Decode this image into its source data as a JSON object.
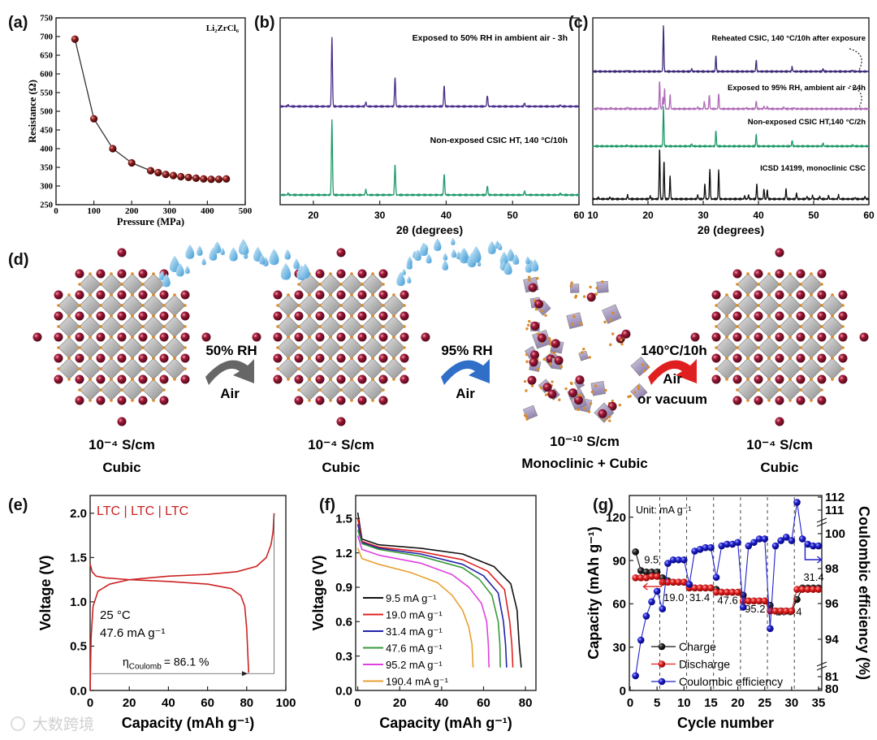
{
  "figure_labels": [
    "(a)",
    "(b)",
    "(c)",
    "(d)",
    "(e)",
    "(f)",
    "(g)"
  ],
  "watermark": "大数跨境",
  "chart_data": [
    {
      "panel": "a",
      "type": "scatter",
      "annotation": "Li₂ZrCl₆",
      "xlabel": "Pressure (MPa)",
      "ylabel": "Resistance (Ω)",
      "xlim": [
        0,
        500
      ],
      "ylim": [
        250,
        750
      ],
      "xticks": [
        0,
        100,
        200,
        300,
        400,
        500
      ],
      "yticks": [
        250,
        300,
        350,
        400,
        450,
        500,
        550,
        600,
        650,
        700,
        750
      ],
      "x": [
        50,
        100,
        150,
        200,
        250,
        270,
        290,
        310,
        330,
        350,
        370,
        390,
        410,
        430,
        450
      ],
      "y": [
        693,
        480,
        400,
        362,
        341,
        336,
        331,
        328,
        325,
        323,
        321,
        319,
        318,
        318,
        319
      ],
      "color": "#8b1a1a"
    },
    {
      "panel": "b",
      "type": "line",
      "xlabel": "2θ (degrees)",
      "xlim": [
        15,
        60
      ],
      "xticks": [
        20,
        30,
        40,
        50,
        60
      ],
      "series": [
        {
          "name": "Exposed to 50% RH in ambient air - 3h",
          "color": "#4a2d8c",
          "peaks": [
            [
              16.2,
              0.02
            ],
            [
              22.8,
              1.0
            ],
            [
              27.9,
              0.06
            ],
            [
              32.3,
              0.42
            ],
            [
              39.7,
              0.3
            ],
            [
              46.2,
              0.16
            ],
            [
              51.8,
              0.05
            ],
            [
              57.2,
              0.02
            ]
          ]
        },
        {
          "name": "Non-exposed CSIC HT, 140 °C/10h",
          "color": "#1f9a6a",
          "peaks": [
            [
              16.2,
              0.02
            ],
            [
              22.8,
              1.0
            ],
            [
              27.9,
              0.07
            ],
            [
              32.3,
              0.4
            ],
            [
              39.7,
              0.28
            ],
            [
              46.2,
              0.12
            ],
            [
              51.8,
              0.05
            ],
            [
              57.2,
              0.02
            ]
          ]
        }
      ]
    },
    {
      "panel": "c",
      "type": "line",
      "xlabel": "2θ (degrees)",
      "xlim": [
        10,
        60
      ],
      "xticks": [
        10,
        20,
        30,
        40,
        50,
        60
      ],
      "series": [
        {
          "name": "Reheated CSIC, 140 °C/10h after exposure",
          "color": "#3e2a78",
          "peaks": [
            [
              16.2,
              0.02
            ],
            [
              22.8,
              1.0
            ],
            [
              27.9,
              0.06
            ],
            [
              32.3,
              0.35
            ],
            [
              39.6,
              0.25
            ],
            [
              46.1,
              0.1
            ],
            [
              51.7,
              0.06
            ],
            [
              57,
              0.03
            ]
          ]
        },
        {
          "name": "Exposed to 95% RH, ambient air - 24h",
          "color": "#b06cb8",
          "peaks": [
            [
              11,
              0.04
            ],
            [
              13.3,
              0.03
            ],
            [
              16.3,
              0.06
            ],
            [
              20.5,
              0.04
            ],
            [
              22.1,
              1.0
            ],
            [
              22.7,
              0.4
            ],
            [
              23,
              0.7
            ],
            [
              24,
              0.5
            ],
            [
              29,
              0.06
            ],
            [
              30.2,
              0.25
            ],
            [
              31.1,
              0.5
            ],
            [
              32.8,
              0.55
            ],
            [
              37.8,
              0.04
            ],
            [
              39.6,
              0.28
            ],
            [
              41,
              0.08
            ],
            [
              41.6,
              0.07
            ],
            [
              44.6,
              0.06
            ],
            [
              46.5,
              0.04
            ]
          ]
        },
        {
          "name": "Non-exposed CSIC HT,140 °C/2h",
          "color": "#1f9a6a",
          "peaks": [
            [
              16.2,
              0.02
            ],
            [
              22.8,
              1.0
            ],
            [
              27.9,
              0.06
            ],
            [
              32.3,
              0.4
            ],
            [
              39.6,
              0.3
            ],
            [
              46.1,
              0.15
            ],
            [
              51.7,
              0.08
            ],
            [
              57.1,
              0.03
            ]
          ]
        },
        {
          "name": "ICSD 14199, monoclinic CSC",
          "color": "#111111",
          "peaks": [
            [
              11,
              0.03
            ],
            [
              13.1,
              0.04
            ],
            [
              16.3,
              0.08
            ],
            [
              20.4,
              0.06
            ],
            [
              22.1,
              1.0
            ],
            [
              22.9,
              0.75
            ],
            [
              24,
              0.45
            ],
            [
              29,
              0.08
            ],
            [
              30.3,
              0.3
            ],
            [
              31.2,
              0.6
            ],
            [
              32.8,
              0.57
            ],
            [
              37.5,
              0.06
            ],
            [
              38.2,
              0.08
            ],
            [
              39.7,
              0.3
            ],
            [
              41,
              0.2
            ],
            [
              41.6,
              0.18
            ],
            [
              45,
              0.2
            ],
            [
              46.9,
              0.12
            ],
            [
              48.8,
              0.05
            ],
            [
              49.8,
              0.07
            ],
            [
              51.1,
              0.05
            ],
            [
              52.7,
              0.07
            ],
            [
              54.5,
              0.08
            ],
            [
              57.5,
              0.03
            ],
            [
              59.3,
              0.05
            ]
          ]
        }
      ]
    },
    {
      "panel": "e",
      "type": "line",
      "title": "LTC | LTC | LTC",
      "conditions": [
        "25 °C",
        "47.6 mA g⁻¹"
      ],
      "eta_symbol": "η",
      "eta_sub": "Coulomb",
      "eta_value": "= 86.1 %",
      "xlabel": "Capacity (mAh g⁻¹)",
      "ylabel": "Voltage (V)",
      "xlim": [
        0,
        100
      ],
      "ylim": [
        0,
        2.2
      ],
      "xticks": [
        0,
        20,
        40,
        60,
        80,
        100
      ],
      "yticks": [
        0.0,
        0.5,
        1.0,
        1.5,
        2.0
      ],
      "ytick_labels": [
        "0.0",
        "0.5",
        "1.0",
        "1.5",
        "2.0"
      ],
      "color": "#cc2222",
      "series": [
        {
          "name": "charge",
          "points": [
            [
              0,
              0
            ],
            [
              0.5,
              0.6
            ],
            [
              1.5,
              0.95
            ],
            [
              4,
              1.12
            ],
            [
              10,
              1.2
            ],
            [
              20,
              1.25
            ],
            [
              40,
              1.29
            ],
            [
              60,
              1.31
            ],
            [
              75,
              1.34
            ],
            [
              85,
              1.4
            ],
            [
              90,
              1.5
            ],
            [
              92.5,
              1.65
            ],
            [
              93.5,
              1.8
            ],
            [
              94,
              2.0
            ]
          ]
        },
        {
          "name": "discharge",
          "points": [
            [
              0,
              1.43
            ],
            [
              1,
              1.34
            ],
            [
              3,
              1.29
            ],
            [
              8,
              1.27
            ],
            [
              20,
              1.25
            ],
            [
              40,
              1.23
            ],
            [
              60,
              1.2
            ],
            [
              72,
              1.15
            ],
            [
              77,
              1.07
            ],
            [
              79,
              0.95
            ],
            [
              80,
              0.7
            ],
            [
              80.6,
              0.4
            ],
            [
              81,
              0.2
            ]
          ]
        }
      ]
    },
    {
      "panel": "f",
      "type": "line",
      "xlabel": "Capacity (mAh g⁻¹)",
      "ylabel": "Voltage (V)",
      "xlim": [
        -1,
        85
      ],
      "ylim": [
        0,
        1.7
      ],
      "xticks": [
        0,
        20,
        40,
        60,
        80
      ],
      "yticks": [
        0,
        0.3,
        0.6,
        0.9,
        1.2,
        1.5
      ],
      "ytick_labels": [
        "0.0",
        "0.3",
        "0.6",
        "0.9",
        "1.2",
        "1.5"
      ],
      "series": [
        {
          "name": "9.5 mA g⁻¹",
          "color": "#111111",
          "points": [
            [
              0,
              1.55
            ],
            [
              2,
              1.32
            ],
            [
              10,
              1.27
            ],
            [
              30,
              1.24
            ],
            [
              50,
              1.19
            ],
            [
              65,
              1.08
            ],
            [
              73,
              0.93
            ],
            [
              76,
              0.7
            ],
            [
              77,
              0.4
            ],
            [
              78,
              0.2
            ]
          ]
        },
        {
          "name": "19.0 mA g⁻¹",
          "color": "#e02020",
          "points": [
            [
              0,
              1.5
            ],
            [
              2,
              1.3
            ],
            [
              10,
              1.25
            ],
            [
              30,
              1.21
            ],
            [
              50,
              1.14
            ],
            [
              62,
              1.04
            ],
            [
              70,
              0.88
            ],
            [
              72.5,
              0.6
            ],
            [
              73.5,
              0.4
            ],
            [
              74,
              0.2
            ]
          ]
        },
        {
          "name": "31.4 mA g⁻¹",
          "color": "#2222aa",
          "points": [
            [
              0,
              1.45
            ],
            [
              2,
              1.29
            ],
            [
              10,
              1.24
            ],
            [
              30,
              1.19
            ],
            [
              50,
              1.1
            ],
            [
              60,
              1.0
            ],
            [
              67,
              0.85
            ],
            [
              69.5,
              0.6
            ],
            [
              70.5,
              0.4
            ],
            [
              71,
              0.2
            ]
          ]
        },
        {
          "name": "47.6 mA g⁻¹",
          "color": "#3a9a3a",
          "points": [
            [
              0,
              1.4
            ],
            [
              2,
              1.28
            ],
            [
              10,
              1.23
            ],
            [
              30,
              1.17
            ],
            [
              50,
              1.07
            ],
            [
              58,
              0.97
            ],
            [
              64,
              0.83
            ],
            [
              67,
              0.6
            ],
            [
              67.8,
              0.4
            ],
            [
              68,
              0.2
            ]
          ]
        },
        {
          "name": "95.2 mA g⁻¹",
          "color": "#e040e0",
          "points": [
            [
              0,
              1.35
            ],
            [
              2,
              1.23
            ],
            [
              10,
              1.18
            ],
            [
              30,
              1.11
            ],
            [
              45,
              1.01
            ],
            [
              53,
              0.9
            ],
            [
              59,
              0.76
            ],
            [
              61.5,
              0.6
            ],
            [
              62.3,
              0.4
            ],
            [
              62.6,
              0.2
            ]
          ]
        },
        {
          "name": "190.4 mA g⁻¹",
          "color": "#e8a030",
          "points": [
            [
              0,
              1.24
            ],
            [
              2,
              1.15
            ],
            [
              10,
              1.1
            ],
            [
              25,
              1.03
            ],
            [
              38,
              0.94
            ],
            [
              45,
              0.83
            ],
            [
              50,
              0.7
            ],
            [
              53,
              0.55
            ],
            [
              54.5,
              0.4
            ],
            [
              55,
              0.2
            ]
          ]
        }
      ]
    },
    {
      "panel": "g",
      "type": "scatter",
      "unit_note": "Unit: mA g⁻¹",
      "xlabel": "Cycle number",
      "ylabel": "Capacity (mAh g⁻¹)",
      "y2label": "Coulombic efficiency (%)",
      "xlim": [
        -0.15,
        35.6
      ],
      "ylim": [
        0,
        135
      ],
      "xticks": [
        0,
        5,
        10,
        15,
        20,
        25,
        30,
        35
      ],
      "yticks": [
        0,
        30,
        60,
        90,
        120
      ],
      "y2ticks": [
        80,
        81,
        94,
        96,
        98,
        100,
        111,
        112
      ],
      "rate_boundaries": [
        5.5,
        10.5,
        15.5,
        20.5,
        25.5,
        30.5
      ],
      "rate_labels": [
        "9.5",
        "19.0",
        "31.4",
        "47.6",
        "95.2",
        "190.4",
        "31.4"
      ],
      "cycles": [
        1,
        2,
        3,
        4,
        5,
        6,
        7,
        8,
        9,
        10,
        11,
        12,
        13,
        14,
        15,
        16,
        17,
        18,
        19,
        20,
        21,
        22,
        23,
        24,
        25,
        26,
        27,
        28,
        29,
        30,
        31,
        32,
        33,
        34,
        35
      ],
      "series": [
        {
          "name": "Charge",
          "color": "#111111",
          "axis": "left",
          "values": [
            96,
            83,
            82,
            82,
            82,
            78,
            76,
            75,
            75,
            75,
            72,
            71,
            71,
            71,
            71,
            70,
            68,
            68,
            68,
            68,
            66,
            62,
            62,
            62,
            62,
            59,
            55,
            55,
            55,
            55,
            63,
            71,
            71,
            71,
            71
          ]
        },
        {
          "name": "Discharge",
          "color": "#e02020",
          "axis": "left",
          "values": [
            78,
            78,
            78,
            79,
            79,
            75,
            75,
            75,
            75,
            75,
            71,
            71,
            71,
            71,
            71,
            68,
            68,
            68,
            68,
            68,
            62,
            62,
            62,
            62,
            62,
            55,
            55,
            55,
            55,
            55,
            70,
            70,
            70,
            70,
            70
          ]
        },
        {
          "name": "Coulombic efficiency",
          "color": "#2020cc",
          "axis": "right",
          "values": [
            81.3,
            93.7,
            95.3,
            96.1,
            96.7,
            95.7,
            98.3,
            98.5,
            98.5,
            98.5,
            97.1,
            99.0,
            99.1,
            99.2,
            99.2,
            97.5,
            99.3,
            99.4,
            99.4,
            99.5,
            95.8,
            99.3,
            99.5,
            99.7,
            99.7,
            94.6,
            99.3,
            99.6,
            99.8,
            99.6,
            111.6,
            99.7,
            99.4,
            99.3,
            99.3
          ]
        }
      ]
    }
  ],
  "schematic": {
    "steps": [
      {
        "condition": "50% RH",
        "medium": "Air",
        "color": "#666666"
      },
      {
        "condition": "95% RH",
        "medium": "Air",
        "color": "#2f6fc8"
      },
      {
        "condition": "140°C/10h",
        "medium": "Air",
        "medium2": "or vacuum",
        "color": "#e02020"
      }
    ],
    "states": [
      {
        "conductivity": "10⁻⁴ S/cm",
        "phase": "Cubic"
      },
      {
        "conductivity": "10⁻⁴ S/cm",
        "phase": "Cubic"
      },
      {
        "conductivity": "10⁻¹⁰ S/cm",
        "phase": "Monoclinic + Cubic"
      },
      {
        "conductivity": "10⁻⁴ S/cm",
        "phase": "Cubic"
      }
    ]
  }
}
